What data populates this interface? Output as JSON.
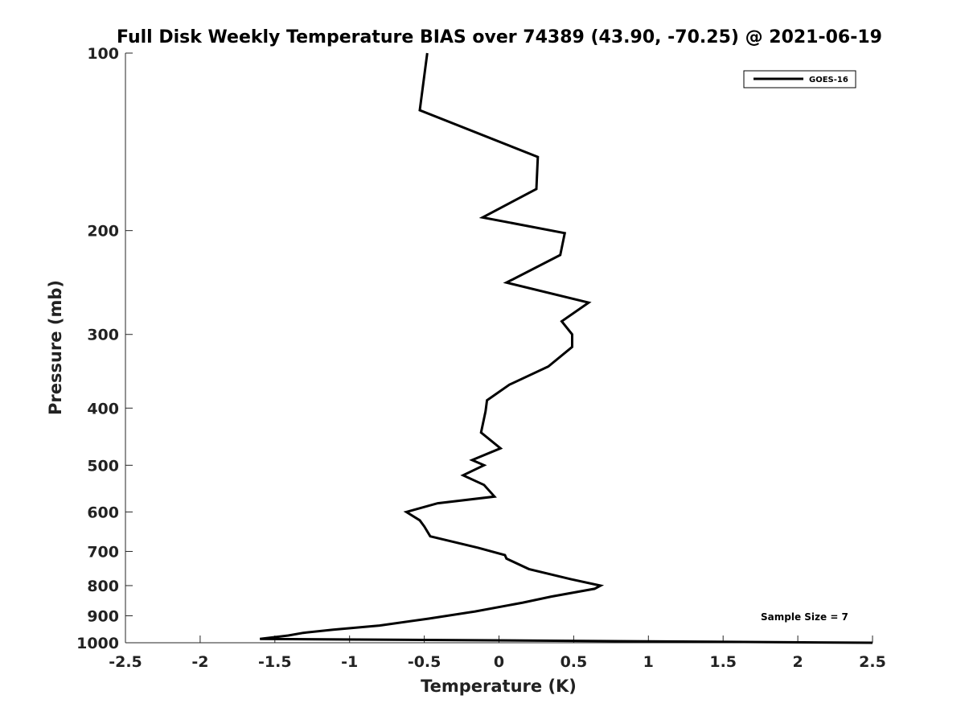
{
  "chart_data": {
    "type": "line",
    "title": "Full Disk Weekly Temperature BIAS over 74389 (43.90, -70.25) @ 2021-06-19",
    "xlabel": "Temperature (K)",
    "ylabel": "Pressure (mb)",
    "xlim": [
      -2.5,
      2.5
    ],
    "ylim": [
      1000,
      100
    ],
    "yscale": "log",
    "y_reversed": true,
    "x_ticks": [
      "-2.5",
      "-2",
      "-1.5",
      "-1",
      "-0.5",
      "0",
      "0.5",
      "1",
      "1.5",
      "2",
      "2.5"
    ],
    "y_ticks": [
      "100",
      "200",
      "300",
      "400",
      "500",
      "600",
      "700",
      "800",
      "900",
      "1000"
    ],
    "grid": false,
    "legend_position": "top-right",
    "annotation": "Sample Size = 7",
    "series": [
      {
        "name": "GOES-16",
        "color": "#000000",
        "points": [
          [
            -0.48,
            100
          ],
          [
            -0.53,
            125
          ],
          [
            0.26,
            150
          ],
          [
            0.25,
            170
          ],
          [
            -0.11,
            190
          ],
          [
            0.44,
            202
          ],
          [
            0.41,
            220
          ],
          [
            0.05,
            245
          ],
          [
            0.6,
            265
          ],
          [
            0.42,
            285
          ],
          [
            0.49,
            300
          ],
          [
            0.49,
            315
          ],
          [
            0.33,
            340
          ],
          [
            0.07,
            365
          ],
          [
            -0.08,
            388
          ],
          [
            -0.09,
            405
          ],
          [
            -0.12,
            440
          ],
          [
            0.01,
            468
          ],
          [
            -0.18,
            490
          ],
          [
            -0.1,
            500
          ],
          [
            -0.24,
            520
          ],
          [
            -0.1,
            540
          ],
          [
            -0.03,
            565
          ],
          [
            -0.41,
            580
          ],
          [
            -0.62,
            600
          ],
          [
            -0.53,
            620
          ],
          [
            -0.5,
            635
          ],
          [
            -0.46,
            660
          ],
          [
            -0.14,
            690
          ],
          [
            0.04,
            710
          ],
          [
            0.05,
            720
          ],
          [
            0.2,
            750
          ],
          [
            0.48,
            780
          ],
          [
            0.68,
            800
          ],
          [
            0.64,
            810
          ],
          [
            0.35,
            835
          ],
          [
            0.16,
            855
          ],
          [
            -0.16,
            885
          ],
          [
            -0.47,
            910
          ],
          [
            -0.8,
            935
          ],
          [
            -1.11,
            950
          ],
          [
            -1.31,
            962
          ],
          [
            -1.41,
            972
          ],
          [
            -1.6,
            985
          ],
          [
            2.5,
            1000
          ]
        ]
      }
    ]
  }
}
